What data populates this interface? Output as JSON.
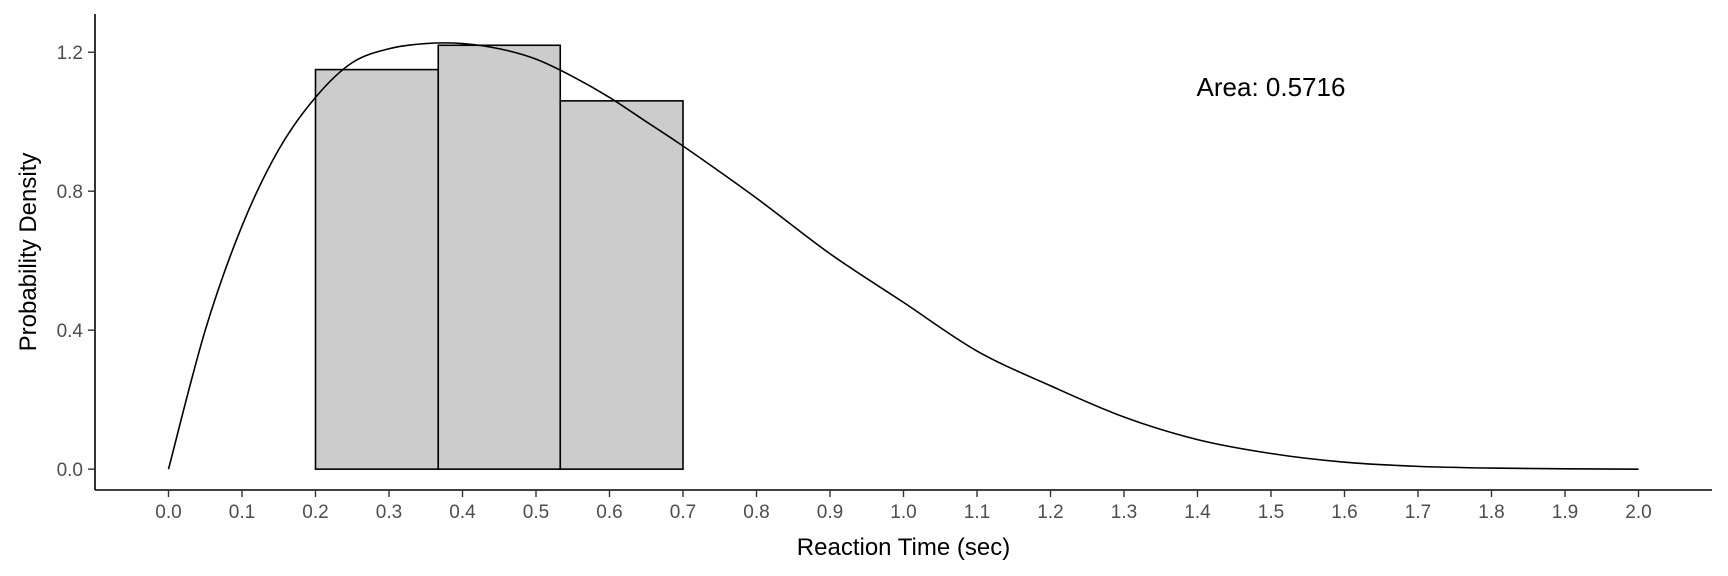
{
  "chart_data": {
    "type": "bar",
    "xlabel": "Reaction Time (sec)",
    "ylabel": "Probability Density",
    "xlim": [
      -0.1,
      2.1
    ],
    "ylim": [
      -0.06,
      1.31
    ],
    "x_ticks": [
      0.0,
      0.1,
      0.2,
      0.3,
      0.4,
      0.5,
      0.6,
      0.7,
      0.8,
      0.9,
      1.0,
      1.1,
      1.2,
      1.3,
      1.4,
      1.5,
      1.6,
      1.7,
      1.8,
      1.9,
      2.0
    ],
    "x_tick_labels": [
      "0.0",
      "0.1",
      "0.2",
      "0.3",
      "0.4",
      "0.5",
      "0.6",
      "0.7",
      "0.8",
      "0.9",
      "1.0",
      "1.1",
      "1.2",
      "1.3",
      "1.4",
      "1.5",
      "1.6",
      "1.7",
      "1.8",
      "1.9",
      "2.0"
    ],
    "y_ticks": [
      0.0,
      0.4,
      0.8,
      1.2
    ],
    "y_tick_labels": [
      "0.0",
      "0.4",
      "0.8",
      "1.2"
    ],
    "bars": [
      {
        "x_start": 0.2,
        "x_end": 0.367,
        "value": 1.15
      },
      {
        "x_start": 0.367,
        "x_end": 0.533,
        "value": 1.22
      },
      {
        "x_start": 0.533,
        "x_end": 0.7,
        "value": 1.06
      }
    ],
    "density_curve": {
      "x": [
        0.0,
        0.05,
        0.1,
        0.15,
        0.2,
        0.25,
        0.3,
        0.35,
        0.4,
        0.45,
        0.5,
        0.55,
        0.6,
        0.65,
        0.7,
        0.8,
        0.9,
        1.0,
        1.1,
        1.2,
        1.3,
        1.4,
        1.5,
        1.6,
        1.7,
        1.8,
        1.9,
        2.0
      ],
      "y": [
        0.0,
        0.4,
        0.7,
        0.92,
        1.07,
        1.17,
        1.21,
        1.225,
        1.225,
        1.21,
        1.18,
        1.13,
        1.07,
        1.0,
        0.93,
        0.78,
        0.62,
        0.48,
        0.34,
        0.24,
        0.15,
        0.085,
        0.045,
        0.02,
        0.008,
        0.003,
        0.001,
        0.0
      ]
    },
    "annotations": [
      {
        "text": "Area: 0.5716",
        "x": 1.5,
        "y": 1.1
      }
    ],
    "colors": {
      "bar_fill": "#cccccc",
      "bar_stroke": "#000000",
      "curve": "#000000"
    },
    "grid": false,
    "legend": "none"
  }
}
